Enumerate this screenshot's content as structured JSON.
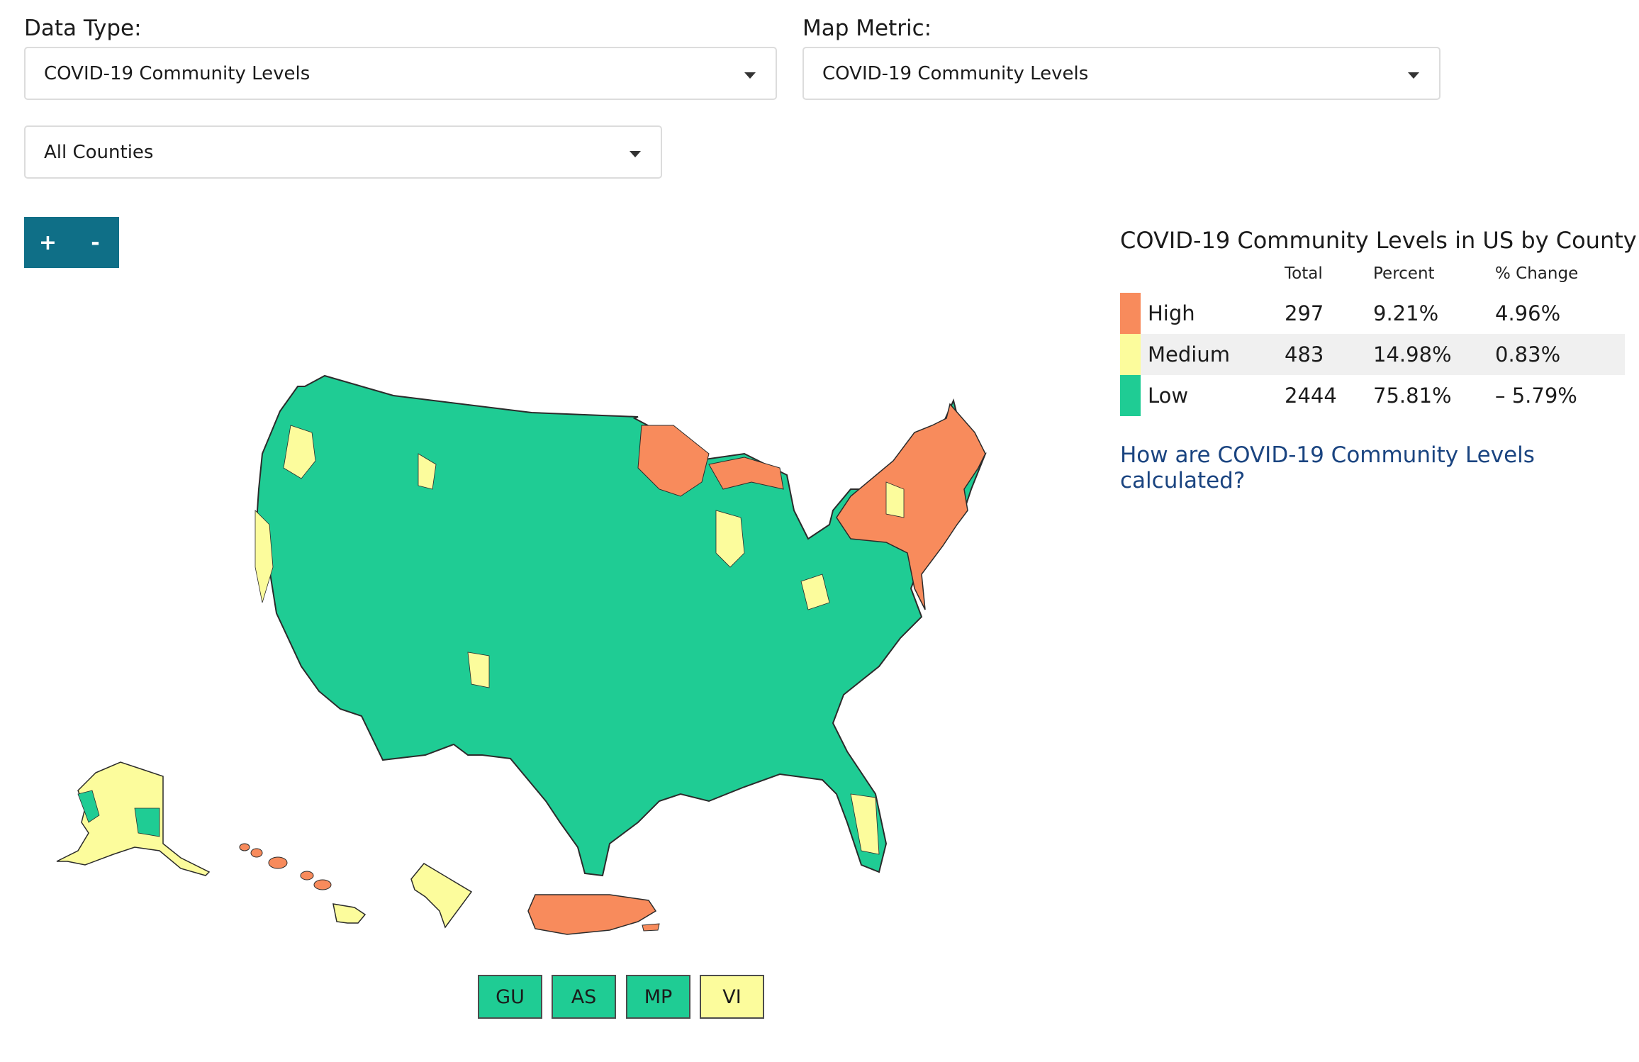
{
  "filters": {
    "data_type_label": "Data Type:",
    "data_type_value": "COVID-19 Community Levels",
    "map_metric_label": "Map Metric:",
    "map_metric_value": "COVID-19 Community Levels",
    "area_value": "All Counties"
  },
  "zoom": {
    "in_label": "+",
    "out_label": "-"
  },
  "colors": {
    "high": "#f88b5c",
    "medium": "#fcfc9c",
    "low": "#1fcc94",
    "accent": "#0f6f87",
    "link": "#1a4480"
  },
  "legend": {
    "title": "COVID-19 Community Levels in US by County",
    "columns": [
      "Total",
      "Percent",
      "% Change"
    ],
    "rows": [
      {
        "level": "High",
        "total": "297",
        "percent": "9.21%",
        "change": "4.96%",
        "color": "#f88b5c"
      },
      {
        "level": "Medium",
        "total": "483",
        "percent": "14.98%",
        "change": "0.83%",
        "color": "#fcfc9c"
      },
      {
        "level": "Low",
        "total": "2444",
        "percent": "75.81%",
        "change": "– 5.79%",
        "color": "#1fcc94"
      }
    ]
  },
  "calc_link": "How are COVID-19 Community Levels calculated?",
  "map": {
    "regions": [
      {
        "name": "contiguous-us",
        "level": "low"
      },
      {
        "name": "northeast",
        "level": "high"
      },
      {
        "name": "minnesota-wisconsin",
        "level": "high"
      },
      {
        "name": "michigan",
        "level": "high"
      },
      {
        "name": "alaska",
        "level": "medium"
      },
      {
        "name": "hawaii-big-island",
        "level": "medium"
      },
      {
        "name": "hawaii-islands",
        "level": "high"
      },
      {
        "name": "puerto-rico",
        "level": "high"
      },
      {
        "name": "usvi-inset",
        "level": "medium"
      }
    ]
  },
  "territories": [
    {
      "code": "GU",
      "level": "low"
    },
    {
      "code": "AS",
      "level": "low"
    },
    {
      "code": "MP",
      "level": "low"
    },
    {
      "code": "VI",
      "level": "medium"
    }
  ]
}
